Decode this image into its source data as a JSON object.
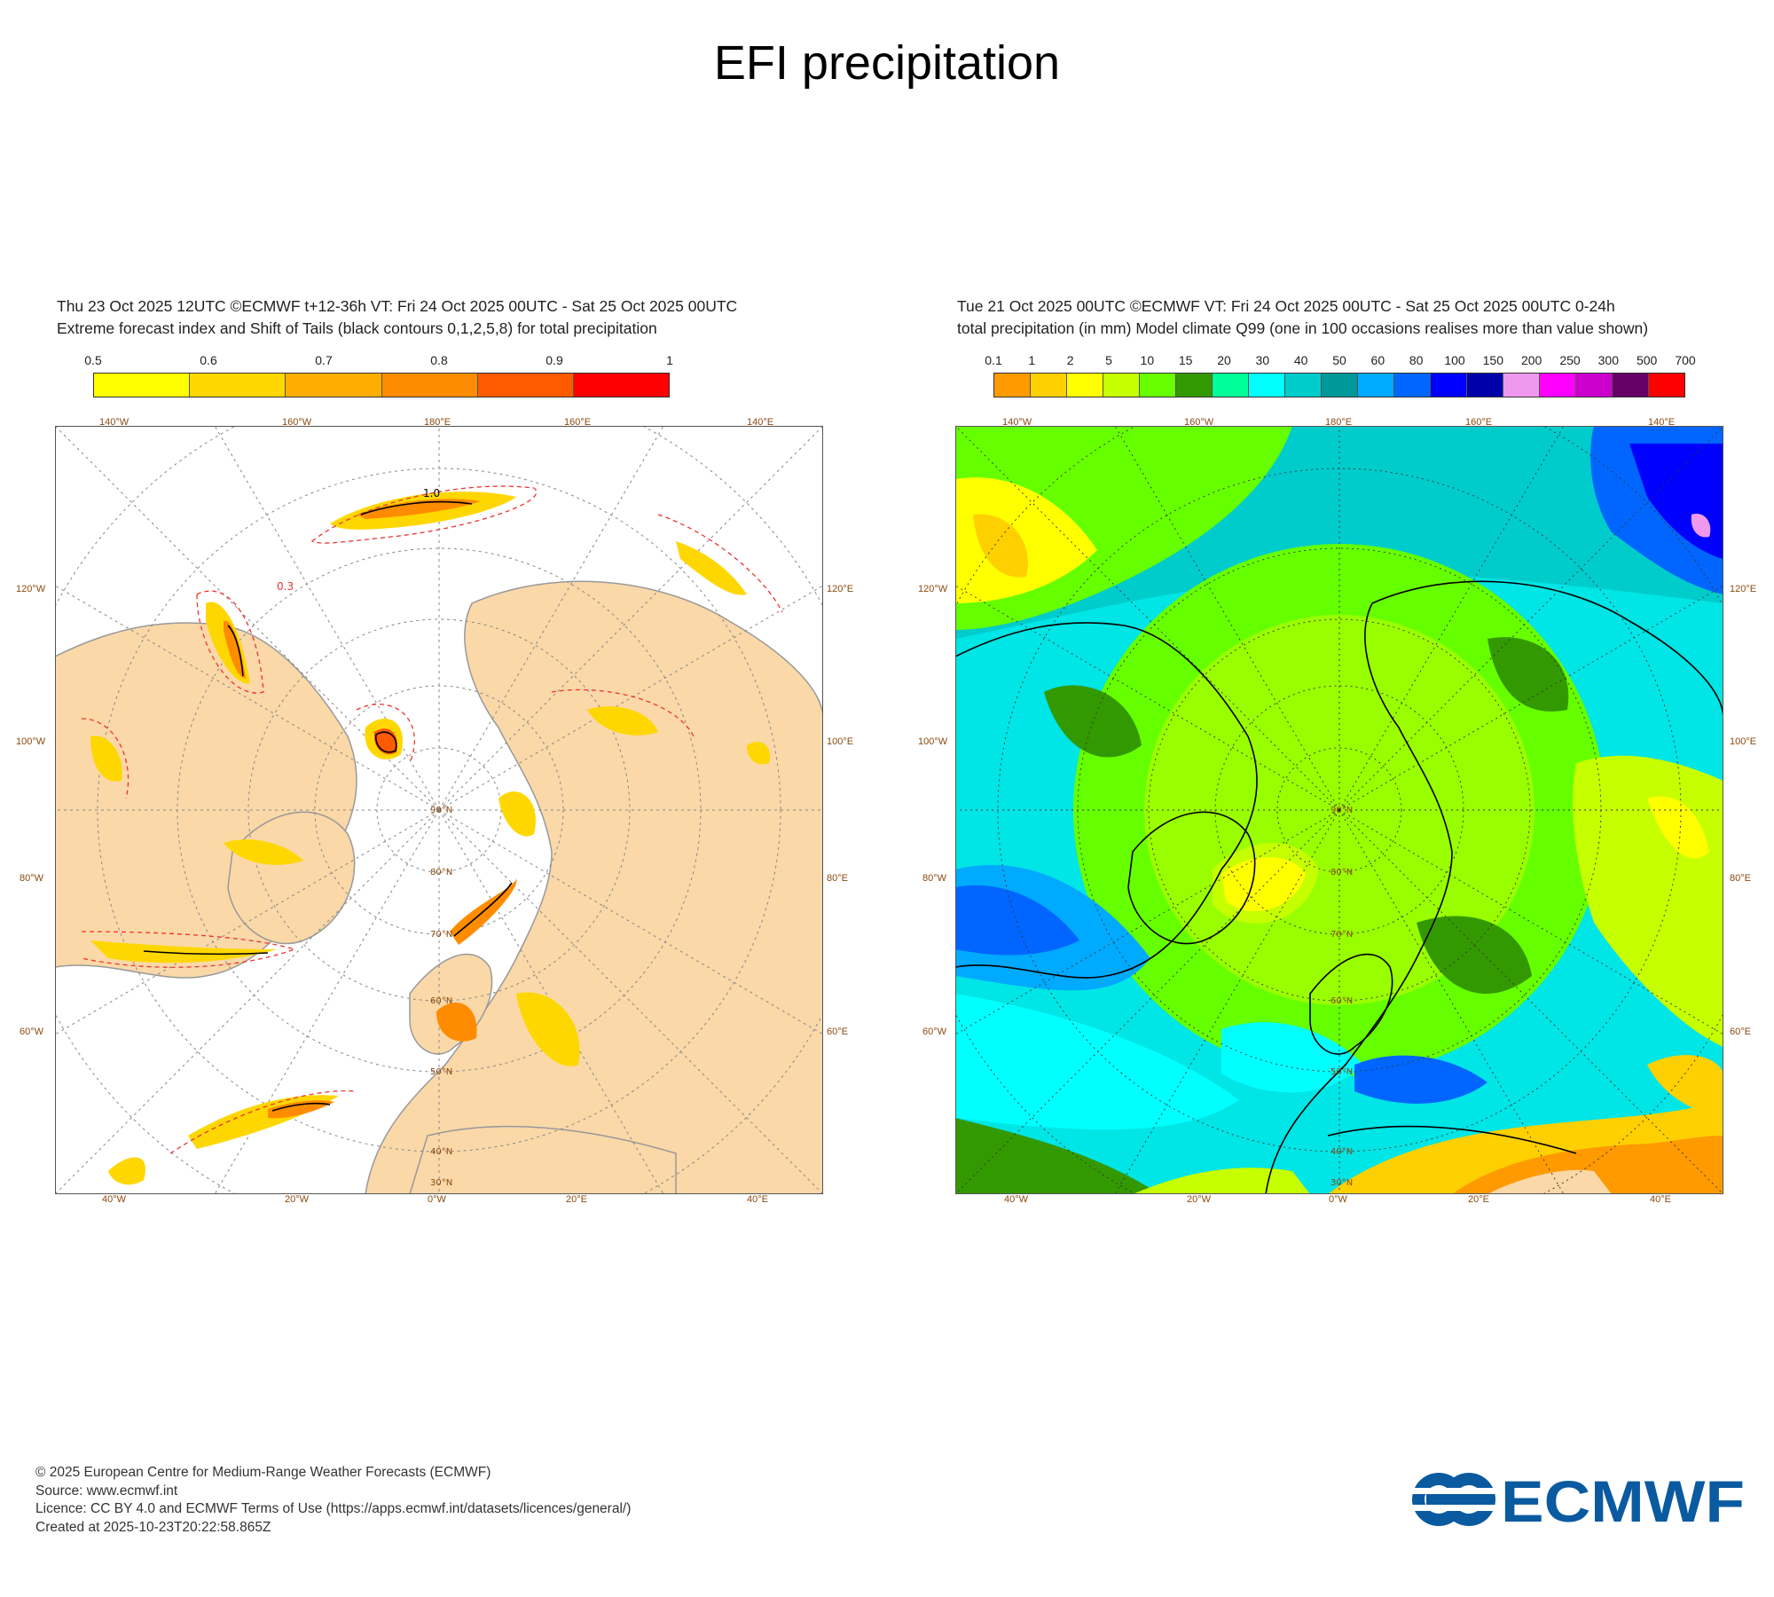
{
  "title": "EFI precipitation",
  "left_panel": {
    "header_line1": "Thu 23 Oct 2025 12UTC ©ECMWF t+12-36h  VT: Fri 24 Oct 2025 00UTC - Sat 25 Oct 2025 00UTC",
    "header_line2": "Extreme forecast index and Shift of Tails (black contours 0,1,2,5,8) for total precipitation",
    "colorbar": {
      "labels": [
        "0.5",
        "0.6",
        "0.7",
        "0.8",
        "0.9",
        "1"
      ],
      "colors": [
        "#ffff00",
        "#ffd700",
        "#ffae00",
        "#ff8c00",
        "#ff5a00",
        "#ff0000"
      ]
    },
    "map": {
      "top_labels": [
        "140°W",
        "160°W",
        "180°E",
        "160°E",
        "140°E"
      ],
      "bottom_labels": [
        "40°W",
        "20°W",
        "0°W",
        "20°E",
        "40°E"
      ],
      "left_labels": [
        "120°W",
        "100°W",
        "80°W",
        "60°W"
      ],
      "right_labels": [
        "120°E",
        "100°E",
        "80°E",
        "60°E"
      ],
      "lat_labels": [
        "30°N",
        "40°N",
        "50°N",
        "60°N",
        "70°N",
        "80°N",
        "90°N"
      ],
      "contour_labels": [
        "0.3",
        "1.0"
      ]
    }
  },
  "right_panel": {
    "header_line1": "Tue 21 Oct 2025 00UTC ©ECMWF VT: Fri 24 Oct 2025 00UTC - Sat 25 Oct 2025 00UTC   0-24h",
    "header_line2": "total precipitation (in mm)  Model climate Q99 (one in 100 occasions realises more than value shown)",
    "colorbar": {
      "labels": [
        "0.1",
        "1",
        "2",
        "5",
        "10",
        "15",
        "20",
        "30",
        "40",
        "50",
        "60",
        "80",
        "100",
        "150",
        "200",
        "250",
        "300",
        "500",
        "700"
      ],
      "colors": [
        "#ff9a00",
        "#ffd000",
        "#ffff00",
        "#c6ff00",
        "#66ff00",
        "#339900",
        "#00ff99",
        "#00ffff",
        "#00cccc",
        "#009999",
        "#00aaff",
        "#0066ff",
        "#0000ff",
        "#0000aa",
        "#ee99ee",
        "#ff00ff",
        "#cc00cc",
        "#660066",
        "#ff0000"
      ]
    },
    "map": {
      "top_labels": [
        "140°W",
        "160°W",
        "180°E",
        "160°E",
        "140°E"
      ],
      "bottom_labels": [
        "40°W",
        "20°W",
        "0°W",
        "20°E",
        "40°E"
      ],
      "left_labels": [
        "120°W",
        "100°W",
        "80°W",
        "60°W"
      ],
      "right_labels": [
        "120°E",
        "100°E",
        "80°E",
        "60°E"
      ],
      "lat_labels": [
        "30°N",
        "40°N",
        "50°N",
        "60°N",
        "70°N",
        "80°N",
        "90°N"
      ]
    }
  },
  "footer": {
    "line1": "© 2025 European Centre for Medium-Range Weather Forecasts (ECMWF)",
    "line2": "Source: www.ecmwf.int",
    "line3": "Licence: CC BY 4.0 and ECMWF Terms of Use (https://apps.ecmwf.int/datasets/licences/general/)",
    "line4": "Created at 2025-10-23T20:22:58.865Z"
  },
  "logo": {
    "text": "ECMWF",
    "color": "#0a5aa0"
  }
}
